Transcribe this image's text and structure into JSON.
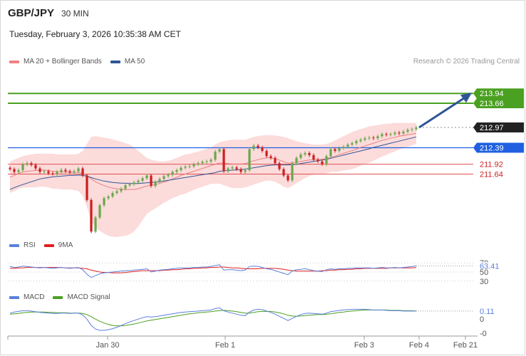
{
  "header": {
    "symbol": "GBP/JPY",
    "timeframe": "30 MIN",
    "datetime": "Tuesday, February 3, 2026 10:35:38 AM CET",
    "credit": "Research © 2026 Trading Central"
  },
  "legends": {
    "price": [
      {
        "label": "MA 20 + Bollinger Bands",
        "color": "#f08080"
      },
      {
        "label": "MA 50",
        "color": "#2f5597"
      }
    ],
    "rsi": [
      {
        "label": "RSI",
        "color": "#5b7fde"
      },
      {
        "label": "9MA",
        "color": "#e02020"
      }
    ],
    "macd": [
      {
        "label": "MACD",
        "color": "#5b7fde"
      },
      {
        "label": "MACD Signal",
        "color": "#4aa020"
      }
    ]
  },
  "colors": {
    "resistance": "#4aa020",
    "support": "#2060e0",
    "pivot_lines": "#e05050",
    "current": "#222222",
    "bull": "#6aa84f",
    "bear": "#cc2020",
    "band_fill": "#fbd5d5",
    "arrow": "#2f5597"
  },
  "chart_data": [
    {
      "type": "candlestick",
      "title": "GBP/JPY",
      "x_ticks": [
        "Jan 30",
        "Feb 1",
        "Feb 3",
        "Feb 4",
        "Feb 21"
      ],
      "ylim": [
        209.8,
        214.9
      ],
      "levels": [
        {
          "value": 213.94,
          "label": "213.94",
          "kind": "resistance"
        },
        {
          "value": 213.66,
          "label": "213.66",
          "kind": "resistance"
        },
        {
          "value": 212.97,
          "label": "212.97",
          "kind": "current"
        },
        {
          "value": 212.39,
          "label": "212.39",
          "kind": "support"
        },
        {
          "value": 211.92,
          "label": "211.92",
          "kind": "pivot"
        },
        {
          "value": 211.64,
          "label": "211.64",
          "kind": "pivot"
        }
      ],
      "close_series": [
        211.78,
        211.7,
        211.75,
        211.92,
        211.95,
        211.9,
        211.8,
        211.7,
        211.72,
        211.66,
        211.64,
        211.7,
        211.76,
        211.72,
        211.68,
        211.72,
        211.8,
        211.6,
        210.9,
        210.0,
        210.4,
        210.75,
        210.95,
        211.0,
        211.1,
        211.15,
        211.22,
        211.32,
        211.35,
        211.4,
        211.45,
        211.52,
        211.6,
        211.3,
        211.42,
        211.5,
        211.58,
        211.62,
        211.7,
        211.75,
        211.82,
        211.85,
        211.86,
        211.92,
        211.95,
        211.99,
        212.0,
        212.05,
        212.28,
        212.35,
        211.72,
        211.8,
        211.83,
        211.78,
        211.7,
        211.75,
        212.35,
        212.45,
        212.4,
        212.3,
        212.15,
        212.1,
        211.95,
        211.78,
        211.6,
        211.46,
        211.95,
        212.1,
        212.2,
        212.24,
        212.18,
        212.05,
        212.0,
        211.92,
        212.15,
        212.35,
        212.3,
        212.38,
        212.42,
        212.48,
        212.52,
        212.58,
        212.62,
        212.66,
        212.68,
        212.66,
        212.72,
        212.78,
        212.76,
        212.78,
        212.82,
        212.8,
        212.85,
        212.9,
        212.92,
        212.97
      ],
      "ma20": [
        211.55,
        211.6,
        211.66,
        211.7,
        211.72,
        211.73,
        211.74,
        211.75,
        211.75,
        211.74,
        211.72,
        211.71,
        211.7,
        211.7,
        211.7,
        211.69,
        211.69,
        211.66,
        211.6,
        211.5,
        211.42,
        211.36,
        211.31,
        211.27,
        211.24,
        211.22,
        211.21,
        211.2,
        211.2,
        211.2,
        211.22,
        211.26,
        211.3,
        211.32,
        211.34,
        211.37,
        211.41,
        211.45,
        211.5,
        211.55,
        211.6,
        211.64,
        211.68,
        211.72,
        211.76,
        211.8,
        211.84,
        211.88,
        211.92,
        211.96,
        211.95,
        211.94,
        211.93,
        211.93,
        211.93,
        211.94,
        211.98,
        212.02,
        212.05,
        212.08,
        212.1,
        212.1,
        212.08,
        212.04,
        211.99,
        211.95,
        211.96,
        211.98,
        212.0,
        212.02,
        212.04,
        212.05,
        212.06,
        212.06,
        212.08,
        212.12,
        212.15,
        212.19,
        212.23,
        212.27,
        212.31,
        212.35,
        212.4,
        212.44,
        212.48,
        212.52,
        212.56,
        212.6,
        212.63,
        212.66,
        212.69,
        212.72,
        212.74,
        212.76,
        212.78,
        212.8
      ],
      "bb_upper": [
        212.0,
        212.05,
        212.1,
        212.15,
        212.18,
        212.2,
        212.22,
        212.22,
        212.22,
        212.22,
        212.22,
        212.2,
        212.2,
        212.2,
        212.2,
        212.2,
        212.22,
        212.3,
        212.5,
        212.7,
        212.72,
        212.7,
        212.68,
        212.66,
        212.63,
        212.6,
        212.56,
        212.52,
        212.48,
        212.4,
        212.3,
        212.2,
        212.1,
        212.05,
        212.02,
        212.0,
        212.0,
        212.02,
        212.05,
        212.1,
        212.15,
        212.2,
        212.22,
        212.25,
        212.28,
        212.32,
        212.36,
        212.4,
        212.48,
        212.55,
        212.58,
        212.6,
        212.62,
        212.62,
        212.62,
        212.62,
        212.66,
        212.7,
        212.72,
        212.74,
        212.75,
        212.75,
        212.74,
        212.72,
        212.7,
        212.66,
        212.62,
        212.58,
        212.55,
        212.52,
        212.5,
        212.48,
        212.48,
        212.48,
        212.5,
        212.54,
        212.6,
        212.66,
        212.72,
        212.78,
        212.84,
        212.88,
        212.92,
        212.96,
        213.0,
        213.02,
        213.04,
        213.06,
        213.08,
        213.08,
        213.1,
        213.1,
        213.1,
        213.1,
        213.1,
        213.1
      ],
      "bb_lower": [
        211.1,
        211.15,
        211.22,
        211.25,
        211.26,
        211.26,
        211.26,
        211.28,
        211.28,
        211.26,
        211.22,
        211.22,
        211.2,
        211.2,
        211.2,
        211.18,
        211.16,
        211.02,
        210.7,
        210.3,
        210.12,
        210.02,
        209.94,
        209.88,
        209.85,
        209.84,
        209.86,
        209.88,
        209.92,
        210.0,
        210.14,
        210.32,
        210.5,
        210.59,
        210.66,
        210.74,
        210.82,
        210.88,
        210.95,
        211.0,
        211.05,
        211.08,
        211.14,
        211.19,
        211.24,
        211.28,
        211.32,
        211.36,
        211.36,
        211.37,
        211.32,
        211.28,
        211.24,
        211.24,
        211.24,
        211.26,
        211.3,
        211.34,
        211.38,
        211.42,
        211.45,
        211.45,
        211.42,
        211.36,
        211.28,
        211.24,
        211.3,
        211.38,
        211.45,
        211.52,
        211.58,
        211.62,
        211.64,
        211.64,
        211.66,
        211.7,
        211.7,
        211.72,
        211.74,
        211.76,
        211.78,
        211.82,
        211.88,
        211.92,
        211.96,
        212.02,
        212.08,
        212.14,
        212.18,
        212.24,
        212.28,
        212.34,
        212.38,
        212.42,
        212.46,
        212.5
      ],
      "ma50": [
        211.2,
        211.25,
        211.3,
        211.34,
        211.38,
        211.42,
        211.46,
        211.5,
        211.52,
        211.54,
        211.56,
        211.57,
        211.58,
        211.59,
        211.6,
        211.6,
        211.61,
        211.6,
        211.58,
        211.54,
        211.5,
        211.47,
        211.44,
        211.42,
        211.4,
        211.39,
        211.38,
        211.38,
        211.37,
        211.37,
        211.37,
        211.38,
        211.39,
        211.4,
        211.41,
        211.42,
        211.44,
        211.46,
        211.48,
        211.5,
        211.52,
        211.54,
        211.56,
        211.58,
        211.6,
        211.62,
        211.64,
        211.66,
        211.68,
        211.72,
        211.73,
        211.74,
        211.75,
        211.76,
        211.77,
        211.78,
        211.8,
        211.82,
        211.84,
        211.86,
        211.88,
        211.89,
        211.9,
        211.9,
        211.9,
        211.9,
        211.91,
        211.92,
        211.94,
        211.96,
        211.98,
        212.0,
        212.02,
        212.04,
        212.06,
        212.09,
        212.12,
        212.15,
        212.18,
        212.21,
        212.24,
        212.27,
        212.3,
        212.33,
        212.36,
        212.4,
        212.43,
        212.46,
        212.49,
        212.52,
        212.55,
        212.58,
        212.61,
        212.64,
        212.67,
        212.7
      ]
    },
    {
      "type": "line",
      "title": "RSI",
      "y_ticks": [
        70,
        50,
        30
      ],
      "ylim": [
        25,
        75
      ],
      "current_label": "63.41",
      "series": [
        {
          "name": "RSI",
          "values": [
            62,
            60,
            61,
            63,
            62,
            61,
            60,
            59,
            60,
            59,
            58,
            59,
            60,
            59,
            58,
            59,
            60,
            55,
            45,
            38,
            42,
            46,
            48,
            49,
            50,
            51,
            52,
            53,
            53,
            54,
            55,
            56,
            57,
            50,
            52,
            54,
            55,
            56,
            57,
            58,
            59,
            59,
            59,
            60,
            60,
            61,
            61,
            62,
            64,
            66,
            54,
            55,
            55,
            54,
            53,
            54,
            62,
            63,
            62,
            60,
            57,
            56,
            53,
            50,
            47,
            44,
            52,
            55,
            56,
            57,
            55,
            53,
            52,
            51,
            55,
            57,
            56,
            57,
            57,
            58,
            58,
            59,
            59,
            59,
            59,
            58,
            59,
            60,
            59,
            59,
            60,
            59,
            60,
            61,
            62,
            63.41
          ]
        },
        {
          "name": "9MA",
          "values": [
            58,
            58,
            59,
            59,
            60,
            60,
            60,
            60,
            60,
            60,
            60,
            60,
            60,
            59,
            59,
            59,
            59,
            58,
            57,
            54,
            52,
            50,
            49,
            49,
            48,
            48,
            48,
            49,
            50,
            51,
            52,
            53,
            53,
            53,
            53,
            53,
            54,
            54,
            55,
            55,
            56,
            57,
            57,
            58,
            58,
            59,
            59,
            60,
            60,
            61,
            61,
            60,
            59,
            59,
            58,
            57,
            57,
            57,
            57,
            58,
            58,
            58,
            58,
            57,
            56,
            54,
            53,
            52,
            52,
            52,
            52,
            52,
            52,
            53,
            53,
            54,
            54,
            55,
            55,
            56,
            56,
            57,
            57,
            58,
            58,
            58,
            58,
            58,
            58,
            59,
            59,
            59,
            59,
            59,
            59,
            60
          ]
        }
      ]
    },
    {
      "type": "line",
      "title": "MACD",
      "y_ticks": [
        "0",
        "-0"
      ],
      "ylim": [
        -0.5,
        0.35
      ],
      "current_label": "0.11",
      "series": [
        {
          "name": "MACD",
          "values": [
            0.05,
            0.08,
            0.1,
            0.12,
            0.12,
            0.11,
            0.09,
            0.07,
            0.06,
            0.05,
            0.04,
            0.04,
            0.05,
            0.05,
            0.04,
            0.05,
            0.05,
            0.0,
            -0.12,
            -0.3,
            -0.4,
            -0.44,
            -0.44,
            -0.42,
            -0.39,
            -0.35,
            -0.3,
            -0.25,
            -0.2,
            -0.16,
            -0.12,
            -0.08,
            -0.05,
            -0.06,
            -0.05,
            -0.03,
            -0.01,
            0.01,
            0.03,
            0.05,
            0.07,
            0.08,
            0.09,
            0.1,
            0.11,
            0.12,
            0.13,
            0.14,
            0.18,
            0.2,
            0.12,
            0.08,
            0.05,
            0.02,
            -0.01,
            -0.02,
            0.08,
            0.14,
            0.16,
            0.15,
            0.11,
            0.07,
            0.02,
            -0.04,
            -0.1,
            -0.16,
            -0.1,
            -0.04,
            0.01,
            0.04,
            0.05,
            0.04,
            0.03,
            0.02,
            0.05,
            0.09,
            0.11,
            0.13,
            0.14,
            0.15,
            0.16,
            0.16,
            0.16,
            0.16,
            0.15,
            0.14,
            0.14,
            0.14,
            0.13,
            0.12,
            0.12,
            0.12,
            0.11,
            0.11,
            0.11,
            0.11
          ]
        },
        {
          "name": "MACD Signal",
          "values": [
            0.02,
            0.03,
            0.04,
            0.06,
            0.07,
            0.08,
            0.08,
            0.08,
            0.08,
            0.07,
            0.07,
            0.06,
            0.06,
            0.06,
            0.05,
            0.05,
            0.05,
            0.04,
            0.01,
            -0.05,
            -0.12,
            -0.18,
            -0.23,
            -0.27,
            -0.3,
            -0.31,
            -0.31,
            -0.3,
            -0.28,
            -0.26,
            -0.23,
            -0.2,
            -0.17,
            -0.15,
            -0.13,
            -0.11,
            -0.09,
            -0.07,
            -0.05,
            -0.03,
            -0.01,
            0.01,
            0.03,
            0.04,
            0.06,
            0.07,
            0.08,
            0.09,
            0.11,
            0.12,
            0.13,
            0.12,
            0.11,
            0.09,
            0.07,
            0.05,
            0.05,
            0.07,
            0.09,
            0.1,
            0.1,
            0.1,
            0.08,
            0.06,
            0.03,
            -0.01,
            -0.03,
            -0.04,
            -0.03,
            -0.02,
            -0.01,
            0.0,
            0.01,
            0.01,
            0.02,
            0.03,
            0.05,
            0.07,
            0.08,
            0.1,
            0.11,
            0.12,
            0.13,
            0.14,
            0.14,
            0.14,
            0.14,
            0.14,
            0.14,
            0.13,
            0.13,
            0.13,
            0.12,
            0.12,
            0.12,
            0.11
          ]
        }
      ]
    }
  ]
}
